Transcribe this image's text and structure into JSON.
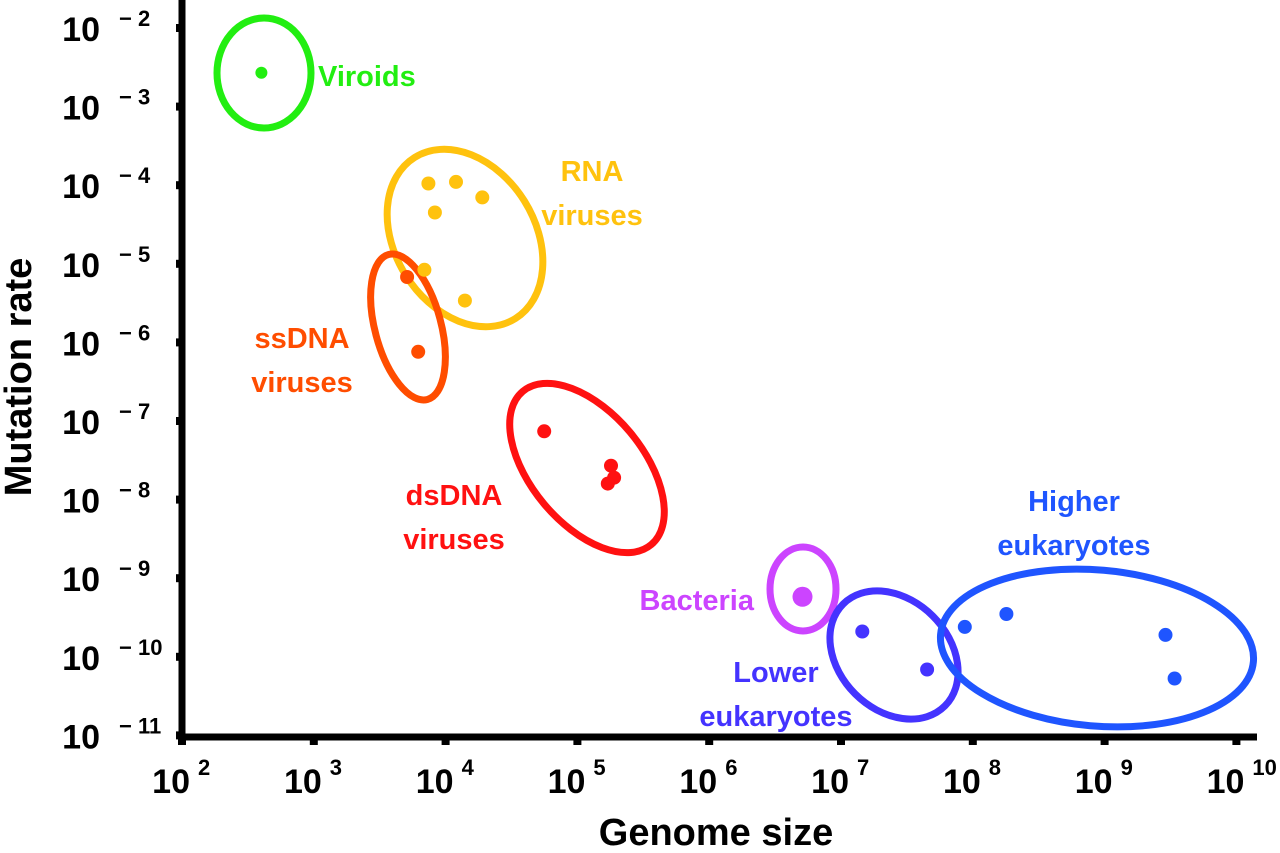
{
  "chart_data": {
    "type": "scatter",
    "title": "",
    "xlabel": "Genome size",
    "ylabel": "Mutation rate",
    "xscale": "log",
    "yscale": "log",
    "xlim": [
      100.0,
      10000000000.0
    ],
    "ylim": [
      1e-11,
      0.01
    ],
    "grid": false,
    "legend": "none (groups labeled inline next to their ellipses)",
    "x_ticks": [
      {
        "base": "10",
        "exp": "2"
      },
      {
        "base": "10",
        "exp": "3"
      },
      {
        "base": "10",
        "exp": "4"
      },
      {
        "base": "10",
        "exp": "5"
      },
      {
        "base": "10",
        "exp": "6"
      },
      {
        "base": "10",
        "exp": "7"
      },
      {
        "base": "10",
        "exp": "8"
      },
      {
        "base": "10",
        "exp": "9"
      },
      {
        "base": "10",
        "exp": "10"
      }
    ],
    "y_ticks": [
      {
        "base": "10",
        "exp": "− 2"
      },
      {
        "base": "10",
        "exp": "− 3"
      },
      {
        "base": "10",
        "exp": "− 4"
      },
      {
        "base": "10",
        "exp": "− 5"
      },
      {
        "base": "10",
        "exp": "− 6"
      },
      {
        "base": "10",
        "exp": "− 7"
      },
      {
        "base": "10",
        "exp": "− 8"
      },
      {
        "base": "10",
        "exp": "− 9"
      },
      {
        "base": "10",
        "exp": "− 10"
      },
      {
        "base": "10",
        "exp": "− 11"
      }
    ],
    "groups": [
      {
        "id": "viroids",
        "label": [
          "Viroids"
        ],
        "color": "#22EE11",
        "points": [
          [
            400,
            0.0027
          ]
        ]
      },
      {
        "id": "rna-viruses",
        "label": [
          "RNA",
          "viruses"
        ],
        "color": "#FFC20E",
        "points": [
          [
            7400.0,
            0.000105
          ],
          [
            12000.0,
            0.00011
          ],
          [
            19000.0,
            7e-05
          ],
          [
            8300.0,
            4.5e-05
          ],
          [
            6900.0,
            8.4e-06
          ],
          [
            14000.0,
            3.4e-06
          ]
        ]
      },
      {
        "id": "ssdna-viruses",
        "label": [
          "ssDNA",
          "viruses"
        ],
        "color": "#FF4D00",
        "points": [
          [
            5100.0,
            6.8e-06
          ],
          [
            6200.0,
            7.6e-07
          ]
        ]
      },
      {
        "id": "dsdna-viruses",
        "label": [
          "dsDNA",
          "viruses"
        ],
        "color": "#FF1111",
        "points": [
          [
            56000.0,
            7.4e-08
          ],
          [
            180000.0,
            2.7e-08
          ],
          [
            190000.0,
            1.9e-08
          ],
          [
            170000.0,
            1.6e-08
          ]
        ]
      },
      {
        "id": "bacteria",
        "label": [
          "Bacteria"
        ],
        "color": "#CC44FF",
        "points": [
          [
            5100000.0,
            5.8e-10
          ]
        ]
      },
      {
        "id": "lower-eukaryotes",
        "label": [
          "Lower",
          "eukaryotes"
        ],
        "color": "#4433FF",
        "points": [
          [
            14500000.0,
            2.1e-10
          ],
          [
            45000000.0,
            6.9e-11
          ]
        ]
      },
      {
        "id": "higher-eukaryotes",
        "label": [
          "Higher",
          "eukaryotes"
        ],
        "color": "#1F55FF",
        "points": [
          [
            87000000.0,
            2.4e-10
          ],
          [
            180000000.0,
            3.5e-10
          ],
          [
            2900000000.0,
            1.9e-10
          ],
          [
            3400000000.0,
            5.3e-11
          ]
        ]
      }
    ]
  }
}
